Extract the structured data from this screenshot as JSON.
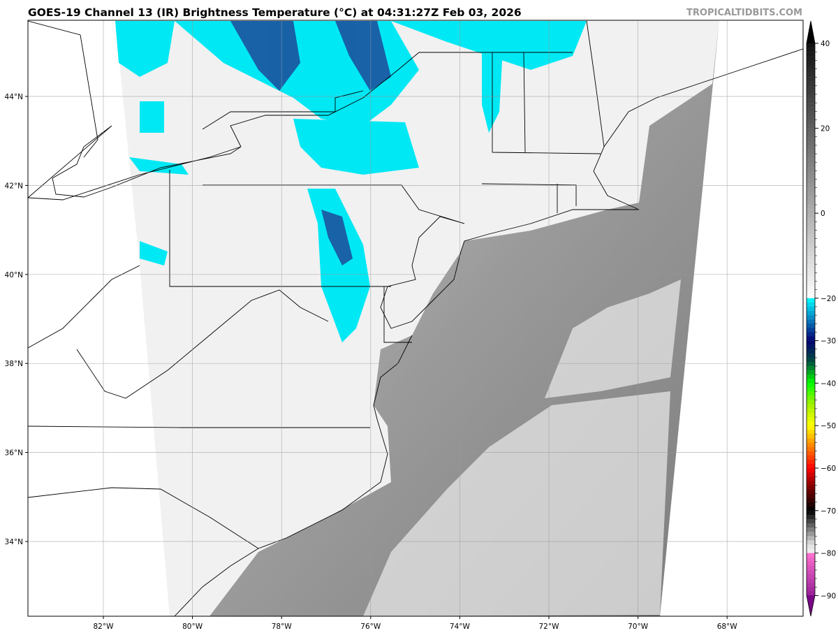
{
  "title": "GOES-19 Channel 13 (IR) Brightness Temperature (°C) at 04:31:27Z Feb 03, 2026",
  "watermark": "TROPICALTIDBITS.COM",
  "map": {
    "latitude_labels": [
      "44°N",
      "42°N",
      "40°N",
      "38°N",
      "36°N",
      "34°N"
    ],
    "latitudes": [
      44,
      42,
      40,
      38,
      36,
      34
    ],
    "longitude_labels": [
      "82°W",
      "80°W",
      "78°W",
      "76°W",
      "74°W",
      "72°W",
      "70°W",
      "68°W"
    ],
    "longitudes": [
      -82,
      -80,
      -78,
      -76,
      -74,
      -72,
      -70,
      -68
    ],
    "colors": {
      "land_background": "#ffffff",
      "cloud_cold": "#00e5f0",
      "cloud_colder": "#1a3a8a",
      "ocean_ir": "#8c8c8c",
      "land_ir": "#ececec"
    }
  },
  "colorbar": {
    "ticks": [
      40,
      20,
      0,
      -20,
      -30,
      -40,
      -50,
      -60,
      -70,
      -80,
      -90
    ],
    "tick_labels": [
      "40",
      "20",
      "0",
      "−20",
      "−30",
      "−40",
      "−50",
      "−60",
      "−70",
      "−80",
      "−90"
    ],
    "range": [
      -94,
      44
    ],
    "colormap": [
      [
        44,
        "#000000"
      ],
      [
        -20,
        "#ffffff"
      ],
      [
        -20.01,
        "#00ffff"
      ],
      [
        -25,
        "#0a7fc0"
      ],
      [
        -30,
        "#000070"
      ],
      [
        -35,
        "#005040"
      ],
      [
        -40,
        "#00ff00"
      ],
      [
        -45,
        "#a0f000"
      ],
      [
        -50,
        "#ffff00"
      ],
      [
        -55,
        "#ff8000"
      ],
      [
        -60,
        "#ff0000"
      ],
      [
        -65,
        "#700000"
      ],
      [
        -70,
        "#000000"
      ],
      [
        -78,
        "#e0e0e0"
      ],
      [
        -80,
        "#f0f0f0"
      ],
      [
        -80.01,
        "#ff70d0"
      ],
      [
        -94,
        "#700080"
      ]
    ]
  }
}
